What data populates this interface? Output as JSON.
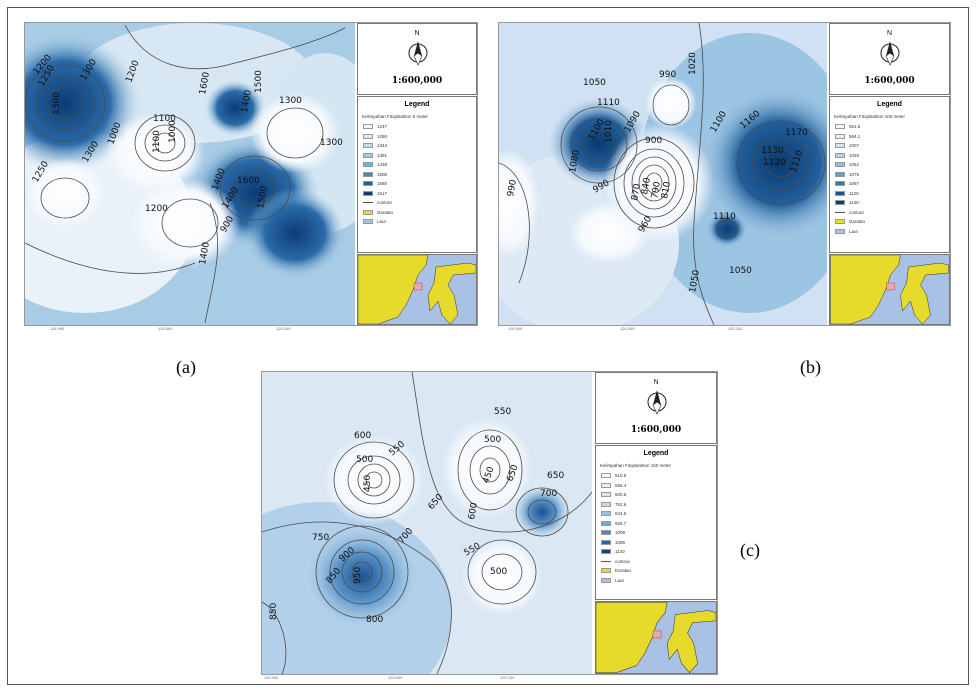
{
  "figure": {
    "panels": [
      {
        "id": "a",
        "caption": "(a)",
        "scale": "1:600,000",
        "north": "N",
        "legend_title": "Legend",
        "legend_subtitle": "Kelimpahan Fitoplankton 0 meter",
        "classes": [
          "1247",
          "1290",
          "1343",
          "1391",
          "1438",
          "1506",
          "1580",
          "1617"
        ],
        "class_colors": [
          "#f1f5fb",
          "#dde9f4",
          "#c6dbef",
          "#9ecae1",
          "#6baed6",
          "#3d8dc5",
          "#1f5fa0",
          "#0b3c74"
        ],
        "contour_label": "contour",
        "land_label": "Daratan",
        "sea_label": "Laut",
        "contour_values": [
          "1200",
          "1250",
          "1300",
          "1100",
          "1000",
          "1200",
          "1300",
          "1250",
          "1400",
          "1500",
          "1600",
          "1400",
          "1300",
          "1300",
          "1100",
          "1200",
          "1400",
          "1600",
          "1400",
          "1500",
          "1300",
          "1000",
          "900"
        ],
        "x_ticks": [
          "119.900",
          "120.000",
          "120.100"
        ],
        "y_ticks": [
          "-2.100",
          "-2.200"
        ]
      },
      {
        "id": "b",
        "caption": "(b)",
        "scale": "1:600,000",
        "north": "N",
        "legend_title": "Legend",
        "legend_subtitle": "Kelimpahan Fitoplankton 100 meter",
        "classes": [
          "961.5",
          "984.1",
          "1007",
          "1029",
          "1052",
          "1075",
          "1097",
          "1120",
          "1130"
        ],
        "class_colors": [
          "#f1f5fb",
          "#e2edf7",
          "#cfe1f2",
          "#b3d1ea",
          "#8fbddf",
          "#5e9ccb",
          "#3379b2",
          "#16528f",
          "#0a3a6e"
        ],
        "contour_label": "contour",
        "land_label": "Daratan",
        "sea_label": "Laut",
        "contour_values": [
          "1050",
          "1110",
          "1100",
          "1080",
          "1090",
          "1020",
          "1010",
          "990",
          "900",
          "840",
          "790",
          "810",
          "870",
          "990",
          "960",
          "990",
          "1110",
          "1100",
          "1130",
          "1120",
          "1160",
          "1170",
          "1110",
          "1050",
          "1050"
        ],
        "x_ticks": [
          "119.900",
          "120.000",
          "120.100"
        ],
        "y_ticks": [
          "-2.100",
          "-2.200"
        ]
      },
      {
        "id": "c",
        "caption": "(c)",
        "scale": "1:600,000",
        "north": "N",
        "legend_title": "Legend",
        "legend_subtitle": "Kelimpahan Fitoplankton 150 meter",
        "classes": [
          "510.9",
          "556.4",
          "600.5",
          "752.6",
          "844.6",
          "926.7",
          "1009",
          "1095",
          "1140"
        ],
        "class_colors": [
          "#f4f8fc",
          "#e6eff8",
          "#d4e4f2",
          "#bcd6ec",
          "#9dc3e2",
          "#73a8d3",
          "#4a8ac1",
          "#2666a3",
          "#0e4580"
        ],
        "contour_label": "contour",
        "land_label": "Daratan",
        "sea_label": "Laut",
        "contour_values": [
          "600",
          "550",
          "500",
          "450",
          "550",
          "500",
          "650",
          "450",
          "650",
          "700",
          "600",
          "650",
          "700",
          "750",
          "850",
          "900",
          "950",
          "800",
          "550",
          "500",
          "850"
        ],
        "x_ticks": [
          "119.900",
          "120.000",
          "120.100"
        ],
        "y_ticks": [
          "-2.100",
          "-2.200"
        ]
      }
    ]
  }
}
